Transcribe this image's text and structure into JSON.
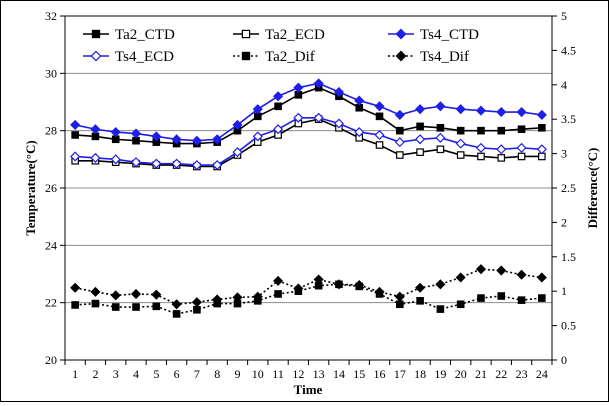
{
  "chart_data": {
    "type": "line",
    "xlabel": "Time",
    "ylabel": "Temperature(°C)",
    "y2label": "Difference(°C)",
    "x": [
      1,
      2,
      3,
      4,
      5,
      6,
      7,
      8,
      9,
      10,
      11,
      12,
      13,
      14,
      15,
      16,
      17,
      18,
      19,
      20,
      21,
      22,
      23,
      24
    ],
    "ylim": [
      20,
      32
    ],
    "y_ticks": [
      20,
      22,
      24,
      26,
      28,
      30,
      32
    ],
    "y2lim": [
      0,
      5
    ],
    "y2_ticks": [
      0,
      0.5,
      1,
      1.5,
      2,
      2.5,
      3,
      3.5,
      4,
      4.5,
      5
    ],
    "grid": true,
    "legend_position": "top (inside plot, two rows of three)",
    "series": [
      {
        "name": "Ta2_CTD",
        "axis": "left",
        "color": "#000000",
        "marker": "square-filled",
        "line": "solid",
        "values": [
          27.85,
          27.8,
          27.7,
          27.65,
          27.6,
          27.55,
          27.55,
          27.6,
          28.0,
          28.5,
          28.85,
          29.25,
          29.5,
          29.2,
          28.8,
          28.5,
          28.0,
          28.15,
          28.1,
          28.0,
          28.0,
          28.0,
          28.05,
          28.1
        ]
      },
      {
        "name": "Ta2_ECD",
        "axis": "left",
        "color": "#000000",
        "marker": "square-open",
        "line": "solid",
        "values": [
          26.95,
          26.95,
          26.9,
          26.85,
          26.8,
          26.8,
          26.75,
          26.75,
          27.15,
          27.6,
          27.85,
          28.25,
          28.4,
          28.1,
          27.75,
          27.5,
          27.15,
          27.25,
          27.35,
          27.15,
          27.1,
          27.05,
          27.1,
          27.1
        ]
      },
      {
        "name": "Ts4_CTD",
        "axis": "left",
        "color": "#1f1fe6",
        "marker": "diamond-filled",
        "line": "solid",
        "values": [
          28.2,
          28.05,
          27.95,
          27.9,
          27.8,
          27.7,
          27.65,
          27.7,
          28.2,
          28.75,
          29.2,
          29.5,
          29.65,
          29.35,
          29.05,
          28.85,
          28.55,
          28.75,
          28.85,
          28.75,
          28.7,
          28.65,
          28.65,
          28.55
        ]
      },
      {
        "name": "Ts4_ECD",
        "axis": "left",
        "color": "#1f1fe6",
        "marker": "diamond-open",
        "line": "solid",
        "values": [
          27.1,
          27.05,
          27.0,
          26.9,
          26.85,
          26.85,
          26.8,
          26.8,
          27.25,
          27.8,
          28.05,
          28.45,
          28.45,
          28.25,
          27.95,
          27.85,
          27.6,
          27.7,
          27.75,
          27.55,
          27.4,
          27.35,
          27.4,
          27.35
        ]
      },
      {
        "name": "Ta2_Dif",
        "axis": "right",
        "color": "#000000",
        "marker": "square-filled",
        "line": "dotted",
        "values": [
          0.8,
          0.82,
          0.77,
          0.77,
          0.78,
          0.67,
          0.73,
          0.82,
          0.82,
          0.86,
          0.96,
          1.0,
          1.08,
          1.1,
          1.07,
          0.96,
          0.81,
          0.86,
          0.74,
          0.81,
          0.9,
          0.93,
          0.87,
          0.9
        ]
      },
      {
        "name": "Ts4_Dif",
        "axis": "right",
        "color": "#000000",
        "marker": "diamond-filled",
        "line": "dotted",
        "values": [
          1.05,
          0.99,
          0.94,
          0.96,
          0.95,
          0.81,
          0.84,
          0.88,
          0.91,
          0.92,
          1.15,
          1.04,
          1.17,
          1.1,
          1.09,
          0.99,
          0.92,
          1.05,
          1.1,
          1.2,
          1.32,
          1.3,
          1.24,
          1.2
        ]
      }
    ]
  }
}
